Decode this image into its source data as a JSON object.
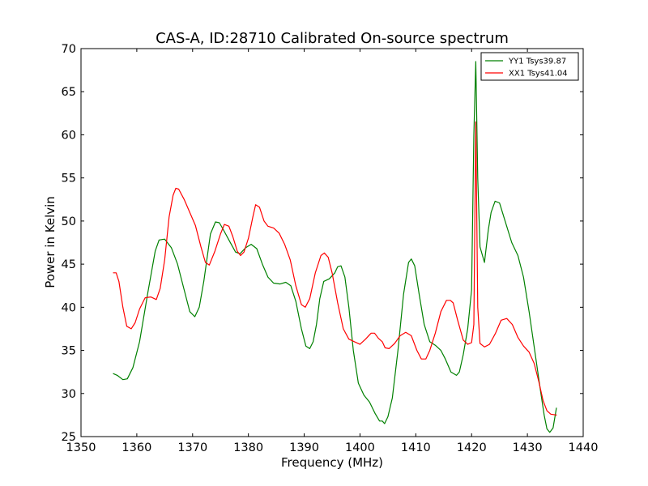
{
  "chart_data": {
    "type": "line",
    "title": "CAS-A, ID:28710 Calibrated On-source spectrum",
    "xlabel": "Frequency (MHz)",
    "ylabel": "Power in Kelvin",
    "xlim": [
      1350,
      1440
    ],
    "ylim": [
      25,
      70
    ],
    "xticks": [
      1350,
      1360,
      1370,
      1380,
      1390,
      1400,
      1410,
      1420,
      1430,
      1440
    ],
    "yticks": [
      25,
      30,
      35,
      40,
      45,
      50,
      55,
      60,
      65,
      70
    ],
    "grid": false,
    "legend_position": "top-right",
    "series": [
      {
        "name": "YY1 Tsys39.87",
        "color": "#008000",
        "x": [
          1355.8,
          1356.5,
          1357.5,
          1358.3,
          1359.3,
          1360.5,
          1362.0,
          1363.3,
          1364.0,
          1365.0,
          1366.2,
          1367.3,
          1368.5,
          1369.5,
          1370.4,
          1371.2,
          1372.0,
          1373.2,
          1374.1,
          1374.8,
          1375.5,
          1376.5,
          1377.7,
          1378.5,
          1379.5,
          1380.5,
          1381.5,
          1382.5,
          1383.5,
          1384.5,
          1385.7,
          1386.7,
          1387.6,
          1388.5,
          1389.5,
          1390.3,
          1391.0,
          1391.6,
          1392.2,
          1392.8,
          1393.5,
          1394.5,
          1395.5,
          1396.0,
          1396.6,
          1397.3,
          1398.0,
          1398.8,
          1399.7,
          1400.7,
          1401.7,
          1402.7,
          1403.5,
          1404.0,
          1404.4,
          1405.0,
          1405.8,
          1406.8,
          1407.8,
          1408.7,
          1409.2,
          1409.8,
          1410.6,
          1411.5,
          1412.5,
          1413.5,
          1414.5,
          1415.3,
          1416.3,
          1417.3,
          1417.8,
          1418.5,
          1419.3,
          1420.0,
          1420.4,
          1420.75,
          1421.1,
          1421.5,
          1422.3,
          1423.0,
          1423.5,
          1424.2,
          1425.0,
          1426.0,
          1427.2,
          1428.3,
          1429.3,
          1430.3,
          1431.3,
          1432.3,
          1433.0,
          1433.5,
          1434.0,
          1434.6,
          1435.2
        ],
        "values": [
          32.3,
          32.1,
          31.6,
          31.7,
          33.0,
          36.0,
          41.8,
          46.5,
          47.8,
          47.9,
          46.9,
          45.0,
          42.0,
          39.5,
          38.9,
          40.0,
          43.0,
          48.5,
          49.9,
          49.8,
          49.0,
          47.8,
          46.4,
          46.2,
          46.9,
          47.3,
          46.8,
          45.0,
          43.5,
          42.8,
          42.7,
          42.9,
          42.5,
          40.7,
          37.5,
          35.5,
          35.2,
          36.0,
          38.0,
          41.0,
          43.0,
          43.3,
          44.0,
          44.7,
          44.8,
          43.5,
          40.0,
          35.0,
          31.2,
          29.8,
          29.0,
          27.7,
          26.8,
          26.8,
          26.5,
          27.3,
          29.5,
          35.0,
          41.5,
          45.2,
          45.6,
          44.8,
          41.5,
          38.0,
          36.0,
          35.6,
          35.0,
          34.0,
          32.5,
          32.1,
          32.5,
          34.5,
          37.5,
          42.0,
          60.0,
          68.5,
          55.0,
          47.0,
          45.2,
          49.0,
          51.0,
          52.3,
          52.1,
          50.0,
          47.5,
          46.0,
          43.5,
          39.5,
          35.0,
          30.5,
          27.5,
          25.9,
          25.5,
          26.0,
          28.3
        ]
      },
      {
        "name": "XX1 Tsys41.04",
        "color": "#ff0000",
        "x": [
          1355.8,
          1356.3,
          1356.8,
          1357.5,
          1358.2,
          1359.0,
          1359.7,
          1360.5,
          1361.5,
          1362.5,
          1363.5,
          1364.2,
          1365.0,
          1365.8,
          1366.5,
          1367.0,
          1367.5,
          1368.5,
          1369.5,
          1370.5,
          1371.5,
          1372.3,
          1373.0,
          1374.0,
          1375.0,
          1375.7,
          1376.5,
          1377.2,
          1378.0,
          1378.6,
          1379.2,
          1380.0,
          1380.8,
          1381.3,
          1382.0,
          1382.8,
          1383.5,
          1384.5,
          1385.5,
          1386.5,
          1387.5,
          1388.5,
          1389.5,
          1390.2,
          1391.0,
          1392.0,
          1393.0,
          1393.6,
          1394.3,
          1395.0,
          1396.0,
          1397.0,
          1398.0,
          1399.0,
          1400.0,
          1401.0,
          1402.0,
          1402.6,
          1403.3,
          1404.0,
          1404.5,
          1405.2,
          1406.2,
          1407.2,
          1408.2,
          1409.2,
          1410.2,
          1411.0,
          1411.8,
          1412.5,
          1413.5,
          1414.5,
          1415.5,
          1416.2,
          1416.7,
          1417.5,
          1418.5,
          1419.3,
          1420.0,
          1420.4,
          1420.75,
          1421.1,
          1421.5,
          1422.3,
          1423.2,
          1424.3,
          1425.3,
          1426.3,
          1427.3,
          1428.3,
          1429.3,
          1430.3,
          1431.2,
          1432.0,
          1432.8,
          1433.5,
          1434.2,
          1435.2
        ],
        "values": [
          44.0,
          44.0,
          43.0,
          40.0,
          37.8,
          37.5,
          38.2,
          39.8,
          41.1,
          41.2,
          40.9,
          42.2,
          45.5,
          50.5,
          53.0,
          53.8,
          53.7,
          52.5,
          51.0,
          49.5,
          47.0,
          45.2,
          44.9,
          46.5,
          48.5,
          49.6,
          49.4,
          48.2,
          46.5,
          46.0,
          46.4,
          48.0,
          50.5,
          51.9,
          51.6,
          50.0,
          49.4,
          49.2,
          48.6,
          47.3,
          45.5,
          42.5,
          40.3,
          40.0,
          41.0,
          44.0,
          46.0,
          46.3,
          45.8,
          44.0,
          40.5,
          37.5,
          36.3,
          36.0,
          35.7,
          36.3,
          37.0,
          37.0,
          36.4,
          36.0,
          35.3,
          35.2,
          35.8,
          36.7,
          37.1,
          36.7,
          35.0,
          34.0,
          34.0,
          35.0,
          37.0,
          39.5,
          40.8,
          40.8,
          40.5,
          38.5,
          36.2,
          35.7,
          35.9,
          38.0,
          61.5,
          40.0,
          35.8,
          35.4,
          35.7,
          37.0,
          38.5,
          38.7,
          38.0,
          36.5,
          35.5,
          34.8,
          33.5,
          31.5,
          29.2,
          28.0,
          27.6,
          27.5
        ]
      }
    ]
  }
}
